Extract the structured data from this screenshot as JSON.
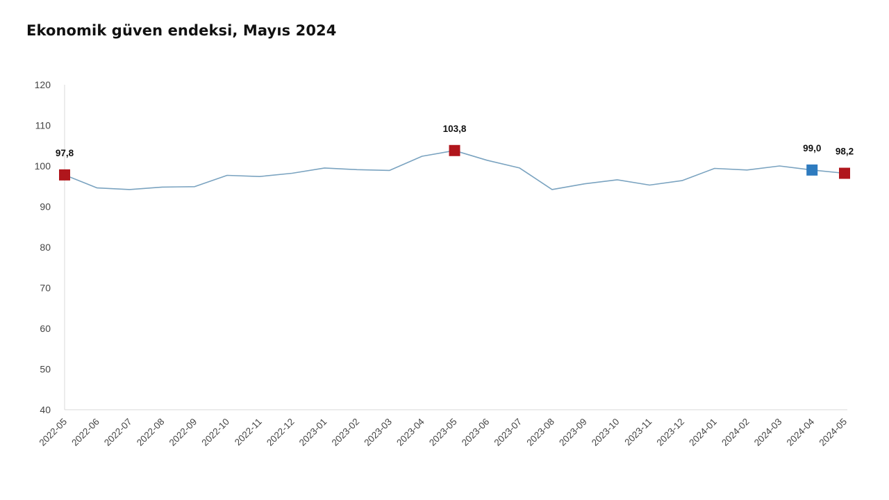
{
  "chart_data": {
    "type": "line",
    "title": "Ekonomik güven endeksi, Mayıs 2024",
    "xlabel": "",
    "ylabel": "",
    "ylim": [
      40,
      120
    ],
    "yticks": [
      "40",
      "50",
      "60",
      "70",
      "80",
      "90",
      "100",
      "110",
      "120"
    ],
    "categories": [
      "2022-05",
      "2022-06",
      "2022-07",
      "2022-08",
      "2022-09",
      "2022-10",
      "2022-11",
      "2022-12",
      "2023-01",
      "2023-02",
      "2023-03",
      "2023-04",
      "2023-05",
      "2023-06",
      "2023-07",
      "2023-08",
      "2023-09",
      "2023-10",
      "2023-11",
      "2023-12",
      "2024-01",
      "2024-02",
      "2024-03",
      "2024-04",
      "2024-05"
    ],
    "series": [
      {
        "name": "Ekonomik güven endeksi",
        "color": "#7aa3c0",
        "values": [
          97.8,
          94.6,
          94.2,
          94.8,
          94.9,
          97.7,
          97.4,
          98.2,
          99.5,
          99.1,
          98.9,
          102.4,
          103.8,
          101.4,
          99.5,
          94.2,
          95.6,
          96.6,
          95.3,
          96.4,
          99.4,
          99.0,
          100.0,
          99.0,
          98.2
        ]
      }
    ],
    "highlights": [
      {
        "index": 0,
        "label": "97,8",
        "color": "#b0161c"
      },
      {
        "index": 12,
        "label": "103,8",
        "color": "#b0161c"
      },
      {
        "index": 23,
        "label": "99,0",
        "color": "#2e7bbf"
      },
      {
        "index": 24,
        "label": "98,2",
        "color": "#b0161c"
      }
    ],
    "grid": false,
    "legend": "none"
  }
}
